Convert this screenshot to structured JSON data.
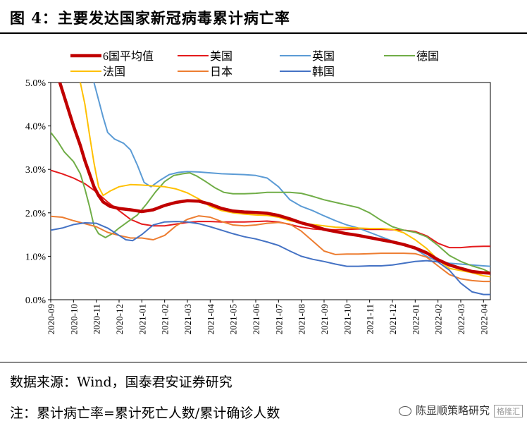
{
  "title": "图 4：主要发达国家新冠病毒累计病亡率",
  "source": "数据来源：Wind，国泰君安证券研究",
  "note": "注：累计病亡率=累计死亡人数/累计确诊人数",
  "brand": {
    "label": "陈显顺策略研究",
    "badge": "格隆汇"
  },
  "chart_data": {
    "type": "line",
    "y_unit": "%",
    "ylim": [
      0.0,
      5.0
    ],
    "yticks": [
      "5.0%",
      "4.0%",
      "3.0%",
      "2.0%",
      "1.0%",
      "0.0%"
    ],
    "ytick_values": [
      5.0,
      4.0,
      3.0,
      2.0,
      1.0,
      0.0
    ],
    "xlim": [
      0,
      19.3
    ],
    "xticks": [
      "2020-09",
      "2020-10",
      "2020-11",
      "2020-12",
      "2021-01",
      "2021-02",
      "2021-03",
      "2021-04",
      "2021-05",
      "2021-06",
      "2021-07",
      "2021-08",
      "2021-09",
      "2021-10",
      "2021-11",
      "2021-12",
      "2022-01",
      "2022-02",
      "2022-03",
      "2022-04"
    ],
    "grid": false,
    "legend_position": "top",
    "series": [
      {
        "name": "6国平均值",
        "color": "#c00000",
        "width": 4.5,
        "points": [
          [
            0.4,
            5.0
          ],
          [
            0.7,
            4.5
          ],
          [
            1.0,
            4.0
          ],
          [
            1.3,
            3.55
          ],
          [
            1.5,
            3.2
          ],
          [
            1.7,
            2.9
          ],
          [
            1.9,
            2.6
          ],
          [
            2.1,
            2.4
          ],
          [
            2.3,
            2.25
          ],
          [
            2.6,
            2.15
          ],
          [
            3.0,
            2.1
          ],
          [
            3.5,
            2.07
          ],
          [
            4.0,
            2.03
          ],
          [
            4.5,
            2.07
          ],
          [
            5.0,
            2.17
          ],
          [
            5.5,
            2.24
          ],
          [
            6.0,
            2.28
          ],
          [
            6.5,
            2.27
          ],
          [
            7.0,
            2.2
          ],
          [
            7.5,
            2.1
          ],
          [
            8.0,
            2.04
          ],
          [
            8.5,
            2.02
          ],
          [
            9.0,
            2.01
          ],
          [
            9.5,
            1.99
          ],
          [
            10.0,
            1.94
          ],
          [
            10.5,
            1.86
          ],
          [
            11.0,
            1.77
          ],
          [
            11.5,
            1.7
          ],
          [
            12.0,
            1.62
          ],
          [
            12.5,
            1.57
          ],
          [
            13.0,
            1.52
          ],
          [
            13.5,
            1.48
          ],
          [
            14.0,
            1.43
          ],
          [
            14.5,
            1.38
          ],
          [
            15.0,
            1.33
          ],
          [
            15.5,
            1.27
          ],
          [
            16.0,
            1.19
          ],
          [
            16.5,
            1.08
          ],
          [
            17.0,
            0.92
          ],
          [
            17.5,
            0.8
          ],
          [
            18.0,
            0.72
          ],
          [
            18.5,
            0.65
          ],
          [
            19.0,
            0.62
          ],
          [
            19.3,
            0.61
          ]
        ]
      },
      {
        "name": "美国",
        "color": "#e41a1c",
        "width": 2,
        "points": [
          [
            0.0,
            2.98
          ],
          [
            0.5,
            2.9
          ],
          [
            1.0,
            2.8
          ],
          [
            1.5,
            2.67
          ],
          [
            2.0,
            2.48
          ],
          [
            2.5,
            2.25
          ],
          [
            3.0,
            2.05
          ],
          [
            3.5,
            1.85
          ],
          [
            4.0,
            1.74
          ],
          [
            4.5,
            1.7
          ],
          [
            5.0,
            1.7
          ],
          [
            5.5,
            1.74
          ],
          [
            6.0,
            1.78
          ],
          [
            6.5,
            1.8
          ],
          [
            7.0,
            1.8
          ],
          [
            7.5,
            1.79
          ],
          [
            8.0,
            1.79
          ],
          [
            8.5,
            1.79
          ],
          [
            9.0,
            1.8
          ],
          [
            9.5,
            1.81
          ],
          [
            10.0,
            1.79
          ],
          [
            10.5,
            1.73
          ],
          [
            11.0,
            1.67
          ],
          [
            11.5,
            1.63
          ],
          [
            12.0,
            1.61
          ],
          [
            12.5,
            1.61
          ],
          [
            13.0,
            1.62
          ],
          [
            13.5,
            1.63
          ],
          [
            14.0,
            1.62
          ],
          [
            14.5,
            1.62
          ],
          [
            15.0,
            1.61
          ],
          [
            15.5,
            1.6
          ],
          [
            16.0,
            1.57
          ],
          [
            16.5,
            1.47
          ],
          [
            17.0,
            1.3
          ],
          [
            17.5,
            1.2
          ],
          [
            18.0,
            1.2
          ],
          [
            18.5,
            1.22
          ],
          [
            19.0,
            1.23
          ],
          [
            19.3,
            1.23
          ]
        ]
      },
      {
        "name": "英国",
        "color": "#5b9bd5",
        "width": 2,
        "points": [
          [
            1.9,
            5.0
          ],
          [
            2.1,
            4.6
          ],
          [
            2.3,
            4.2
          ],
          [
            2.5,
            3.85
          ],
          [
            2.8,
            3.7
          ],
          [
            3.2,
            3.6
          ],
          [
            3.5,
            3.45
          ],
          [
            3.8,
            3.1
          ],
          [
            4.1,
            2.7
          ],
          [
            4.4,
            2.6
          ],
          [
            4.8,
            2.75
          ],
          [
            5.2,
            2.88
          ],
          [
            5.6,
            2.93
          ],
          [
            6.0,
            2.95
          ],
          [
            6.5,
            2.94
          ],
          [
            7.0,
            2.92
          ],
          [
            7.5,
            2.9
          ],
          [
            8.0,
            2.89
          ],
          [
            8.5,
            2.88
          ],
          [
            9.0,
            2.86
          ],
          [
            9.5,
            2.8
          ],
          [
            10.0,
            2.6
          ],
          [
            10.5,
            2.3
          ],
          [
            11.0,
            2.15
          ],
          [
            11.5,
            2.05
          ],
          [
            12.0,
            1.93
          ],
          [
            12.5,
            1.82
          ],
          [
            13.0,
            1.72
          ],
          [
            13.5,
            1.65
          ],
          [
            14.0,
            1.55
          ],
          [
            14.5,
            1.45
          ],
          [
            15.0,
            1.35
          ],
          [
            15.5,
            1.28
          ],
          [
            16.0,
            1.17
          ],
          [
            16.5,
            1.0
          ],
          [
            17.0,
            0.88
          ],
          [
            17.5,
            0.84
          ],
          [
            18.0,
            0.82
          ],
          [
            18.5,
            0.8
          ],
          [
            19.0,
            0.78
          ],
          [
            19.3,
            0.77
          ]
        ]
      },
      {
        "name": "德国",
        "color": "#70ad47",
        "width": 2,
        "points": [
          [
            0.0,
            3.85
          ],
          [
            0.3,
            3.65
          ],
          [
            0.6,
            3.4
          ],
          [
            1.0,
            3.18
          ],
          [
            1.3,
            2.9
          ],
          [
            1.5,
            2.55
          ],
          [
            1.7,
            2.15
          ],
          [
            1.9,
            1.7
          ],
          [
            2.1,
            1.52
          ],
          [
            2.4,
            1.43
          ],
          [
            2.7,
            1.52
          ],
          [
            3.0,
            1.65
          ],
          [
            3.4,
            1.8
          ],
          [
            3.8,
            1.95
          ],
          [
            4.2,
            2.2
          ],
          [
            4.6,
            2.48
          ],
          [
            5.0,
            2.72
          ],
          [
            5.4,
            2.86
          ],
          [
            5.8,
            2.9
          ],
          [
            6.1,
            2.92
          ],
          [
            6.4,
            2.85
          ],
          [
            6.8,
            2.72
          ],
          [
            7.2,
            2.58
          ],
          [
            7.6,
            2.47
          ],
          [
            8.0,
            2.44
          ],
          [
            8.5,
            2.44
          ],
          [
            9.0,
            2.45
          ],
          [
            9.5,
            2.47
          ],
          [
            10.0,
            2.47
          ],
          [
            10.5,
            2.47
          ],
          [
            11.0,
            2.45
          ],
          [
            11.5,
            2.38
          ],
          [
            12.0,
            2.3
          ],
          [
            12.5,
            2.24
          ],
          [
            13.0,
            2.18
          ],
          [
            13.5,
            2.12
          ],
          [
            14.0,
            2.0
          ],
          [
            14.5,
            1.83
          ],
          [
            15.0,
            1.68
          ],
          [
            15.5,
            1.6
          ],
          [
            16.0,
            1.55
          ],
          [
            16.5,
            1.45
          ],
          [
            17.0,
            1.25
          ],
          [
            17.5,
            1.02
          ],
          [
            18.0,
            0.88
          ],
          [
            18.5,
            0.78
          ],
          [
            19.0,
            0.7
          ],
          [
            19.3,
            0.62
          ]
        ]
      },
      {
        "name": "法国",
        "color": "#ffc000",
        "width": 2,
        "points": [
          [
            1.3,
            5.0
          ],
          [
            1.5,
            4.5
          ],
          [
            1.7,
            3.8
          ],
          [
            1.9,
            3.15
          ],
          [
            2.1,
            2.6
          ],
          [
            2.3,
            2.4
          ],
          [
            2.6,
            2.5
          ],
          [
            3.0,
            2.6
          ],
          [
            3.5,
            2.65
          ],
          [
            4.0,
            2.64
          ],
          [
            4.5,
            2.62
          ],
          [
            5.0,
            2.6
          ],
          [
            5.5,
            2.55
          ],
          [
            6.0,
            2.46
          ],
          [
            6.5,
            2.32
          ],
          [
            7.0,
            2.15
          ],
          [
            7.5,
            2.05
          ],
          [
            8.0,
            2.0
          ],
          [
            8.5,
            1.97
          ],
          [
            9.0,
            1.95
          ],
          [
            9.5,
            1.94
          ],
          [
            10.0,
            1.9
          ],
          [
            10.5,
            1.82
          ],
          [
            11.0,
            1.77
          ],
          [
            11.5,
            1.73
          ],
          [
            12.0,
            1.7
          ],
          [
            12.5,
            1.67
          ],
          [
            13.0,
            1.66
          ],
          [
            13.5,
            1.65
          ],
          [
            14.0,
            1.64
          ],
          [
            14.5,
            1.64
          ],
          [
            15.0,
            1.62
          ],
          [
            15.5,
            1.54
          ],
          [
            16.0,
            1.38
          ],
          [
            16.5,
            1.18
          ],
          [
            17.0,
            0.92
          ],
          [
            17.5,
            0.72
          ],
          [
            18.0,
            0.67
          ],
          [
            18.5,
            0.62
          ],
          [
            19.0,
            0.55
          ],
          [
            19.3,
            0.53
          ]
        ]
      },
      {
        "name": "日本",
        "color": "#ed7d31",
        "width": 2,
        "points": [
          [
            0.0,
            1.92
          ],
          [
            0.5,
            1.9
          ],
          [
            1.0,
            1.82
          ],
          [
            1.5,
            1.75
          ],
          [
            2.0,
            1.68
          ],
          [
            2.5,
            1.55
          ],
          [
            3.0,
            1.48
          ],
          [
            3.5,
            1.42
          ],
          [
            4.0,
            1.42
          ],
          [
            4.5,
            1.38
          ],
          [
            5.0,
            1.48
          ],
          [
            5.5,
            1.7
          ],
          [
            6.0,
            1.85
          ],
          [
            6.5,
            1.93
          ],
          [
            7.0,
            1.9
          ],
          [
            7.5,
            1.8
          ],
          [
            8.0,
            1.72
          ],
          [
            8.5,
            1.7
          ],
          [
            9.0,
            1.72
          ],
          [
            9.5,
            1.76
          ],
          [
            10.0,
            1.78
          ],
          [
            10.5,
            1.74
          ],
          [
            11.0,
            1.58
          ],
          [
            11.5,
            1.35
          ],
          [
            12.0,
            1.12
          ],
          [
            12.5,
            1.04
          ],
          [
            13.0,
            1.05
          ],
          [
            13.5,
            1.05
          ],
          [
            14.0,
            1.06
          ],
          [
            14.5,
            1.07
          ],
          [
            15.0,
            1.07
          ],
          [
            15.5,
            1.07
          ],
          [
            16.0,
            1.06
          ],
          [
            16.5,
            0.98
          ],
          [
            17.0,
            0.78
          ],
          [
            17.5,
            0.58
          ],
          [
            18.0,
            0.48
          ],
          [
            18.5,
            0.44
          ],
          [
            19.0,
            0.42
          ],
          [
            19.3,
            0.42
          ]
        ]
      },
      {
        "name": "韩国",
        "color": "#4472c4",
        "width": 2,
        "points": [
          [
            0.0,
            1.6
          ],
          [
            0.5,
            1.65
          ],
          [
            1.0,
            1.73
          ],
          [
            1.5,
            1.77
          ],
          [
            2.0,
            1.76
          ],
          [
            2.5,
            1.65
          ],
          [
            3.0,
            1.48
          ],
          [
            3.3,
            1.38
          ],
          [
            3.6,
            1.36
          ],
          [
            4.0,
            1.5
          ],
          [
            4.5,
            1.72
          ],
          [
            5.0,
            1.79
          ],
          [
            5.5,
            1.8
          ],
          [
            6.0,
            1.79
          ],
          [
            6.5,
            1.75
          ],
          [
            7.0,
            1.68
          ],
          [
            7.5,
            1.6
          ],
          [
            8.0,
            1.52
          ],
          [
            8.5,
            1.45
          ],
          [
            9.0,
            1.4
          ],
          [
            9.5,
            1.33
          ],
          [
            10.0,
            1.25
          ],
          [
            10.5,
            1.12
          ],
          [
            11.0,
            1.0
          ],
          [
            11.5,
            0.93
          ],
          [
            12.0,
            0.88
          ],
          [
            12.5,
            0.82
          ],
          [
            13.0,
            0.77
          ],
          [
            13.5,
            0.77
          ],
          [
            14.0,
            0.78
          ],
          [
            14.5,
            0.78
          ],
          [
            15.0,
            0.8
          ],
          [
            15.5,
            0.84
          ],
          [
            16.0,
            0.88
          ],
          [
            16.5,
            0.9
          ],
          [
            17.0,
            0.87
          ],
          [
            17.5,
            0.68
          ],
          [
            18.0,
            0.38
          ],
          [
            18.5,
            0.18
          ],
          [
            19.0,
            0.12
          ],
          [
            19.3,
            0.12
          ]
        ]
      }
    ]
  }
}
